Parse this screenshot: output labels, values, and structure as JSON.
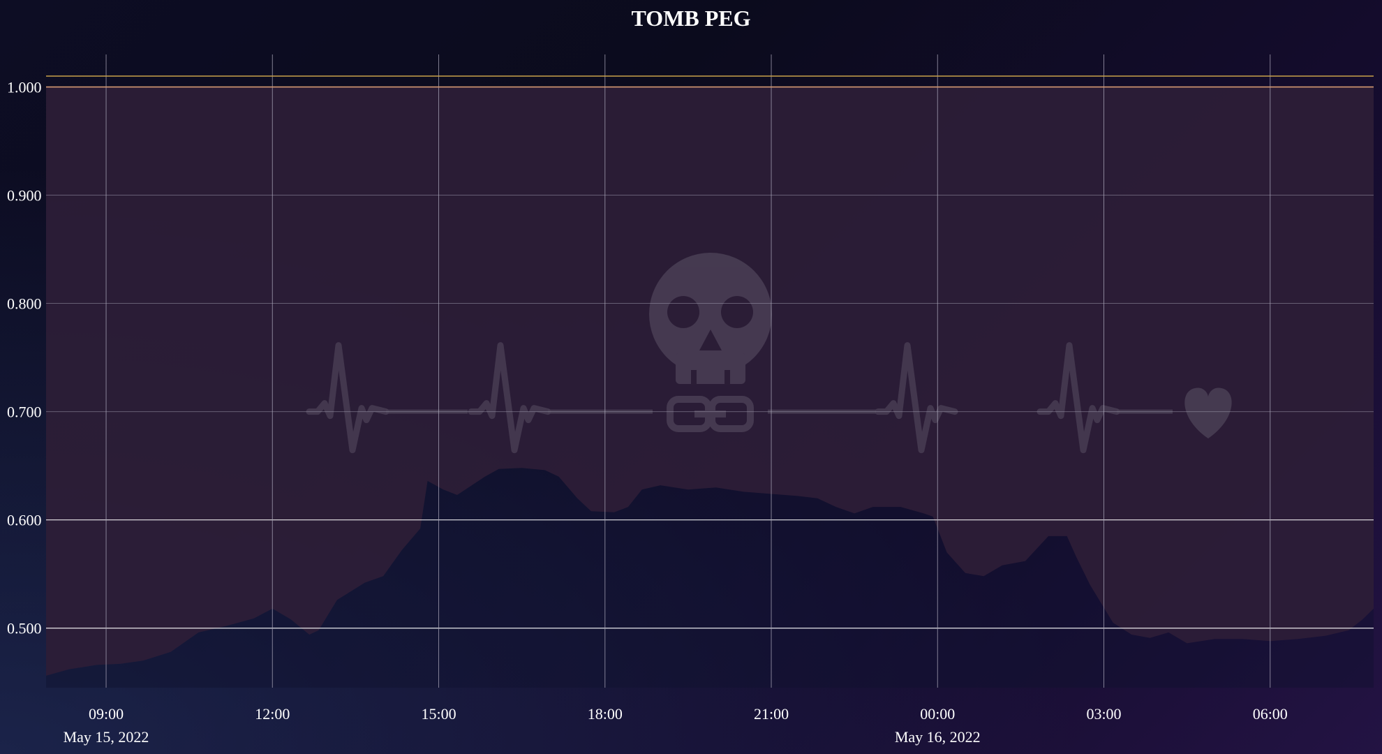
{
  "chart_data": {
    "type": "area",
    "title": "TOMB PEG",
    "xlabel": "",
    "ylabel": "",
    "ylim": [
      0.445,
      1.03
    ],
    "xlim": [
      "2022-05-15 07:55",
      "2022-05-16 07:52"
    ],
    "grid": true,
    "reference_lines": [
      {
        "value": 1.01,
        "color": "#c9a24a"
      },
      {
        "value": 1.0,
        "color": "#d59a72"
      }
    ],
    "y_ticks": [
      "0.500",
      "0.600",
      "0.700",
      "0.800",
      "0.900",
      "1.000"
    ],
    "x_ticks": [
      {
        "label": "09:00",
        "sublabel": "May 15, 2022"
      },
      {
        "label": "12:00"
      },
      {
        "label": "15:00"
      },
      {
        "label": "18:00"
      },
      {
        "label": "21:00"
      },
      {
        "label": "00:00",
        "sublabel": "May 16, 2022"
      },
      {
        "label": "03:00"
      },
      {
        "label": "06:00"
      }
    ],
    "series": [
      {
        "x": [
          "2022-05-15 07:55",
          "2022-05-15 08:20",
          "2022-05-15 08:50",
          "2022-05-15 09:15",
          "2022-05-15 09:40",
          "2022-05-15 10:10",
          "2022-05-15 10:40",
          "2022-05-15 11:10",
          "2022-05-15 11:40",
          "2022-05-15 12:00",
          "2022-05-15 12:20",
          "2022-05-15 12:40",
          "2022-05-15 12:50",
          "2022-05-15 13:10",
          "2022-05-15 13:40",
          "2022-05-15 14:00",
          "2022-05-15 14:20",
          "2022-05-15 14:40",
          "2022-05-15 14:48",
          "2022-05-15 15:05",
          "2022-05-15 15:20",
          "2022-05-15 15:50",
          "2022-05-15 16:05",
          "2022-05-15 16:30",
          "2022-05-15 16:55",
          "2022-05-15 17:10",
          "2022-05-15 17:30",
          "2022-05-15 17:45",
          "2022-05-15 18:10",
          "2022-05-15 18:25",
          "2022-05-15 18:40",
          "2022-05-15 19:00",
          "2022-05-15 19:30",
          "2022-05-15 20:00",
          "2022-05-15 20:30",
          "2022-05-15 21:00",
          "2022-05-15 21:30",
          "2022-05-15 21:50",
          "2022-05-15 22:10",
          "2022-05-15 22:30",
          "2022-05-15 22:50",
          "2022-05-15 23:20",
          "2022-05-15 23:45",
          "2022-05-15 23:55",
          "2022-05-16 00:10",
          "2022-05-16 00:30",
          "2022-05-16 00:50",
          "2022-05-16 01:10",
          "2022-05-16 01:35",
          "2022-05-16 02:00",
          "2022-05-16 02:20",
          "2022-05-16 02:30",
          "2022-05-16 02:45",
          "2022-05-16 03:10",
          "2022-05-16 03:30",
          "2022-05-16 03:50",
          "2022-05-16 04:10",
          "2022-05-16 04:30",
          "2022-05-16 05:00",
          "2022-05-16 05:30",
          "2022-05-16 06:00",
          "2022-05-16 06:30",
          "2022-05-16 07:00",
          "2022-05-16 07:25",
          "2022-05-16 07:40",
          "2022-05-16 07:52"
        ],
        "values": [
          0.456,
          0.462,
          0.466,
          0.467,
          0.47,
          0.478,
          0.496,
          0.502,
          0.509,
          0.518,
          0.508,
          0.494,
          0.498,
          0.526,
          0.542,
          0.548,
          0.572,
          0.592,
          0.636,
          0.628,
          0.623,
          0.64,
          0.647,
          0.648,
          0.646,
          0.64,
          0.62,
          0.608,
          0.607,
          0.612,
          0.628,
          0.632,
          0.628,
          0.63,
          0.626,
          0.624,
          0.622,
          0.62,
          0.612,
          0.606,
          0.612,
          0.612,
          0.606,
          0.603,
          0.57,
          0.551,
          0.548,
          0.558,
          0.562,
          0.585,
          0.585,
          0.566,
          0.54,
          0.505,
          0.494,
          0.491,
          0.496,
          0.486,
          0.49,
          0.49,
          0.488,
          0.49,
          0.493,
          0.498,
          0.508,
          0.518
        ]
      }
    ]
  },
  "watermark": {
    "icons": [
      "heartbeat-icon",
      "skull-icon",
      "chain-link-icon",
      "heart-icon"
    ],
    "color": "#4a3f55"
  },
  "colors": {
    "fill_above": "#2c1e37",
    "fill_below": "#10122e",
    "grid": "#a9a6b8",
    "grid_strong": "#ffffff",
    "ref_high": "#c9a24a",
    "ref_low": "#d59a72"
  }
}
